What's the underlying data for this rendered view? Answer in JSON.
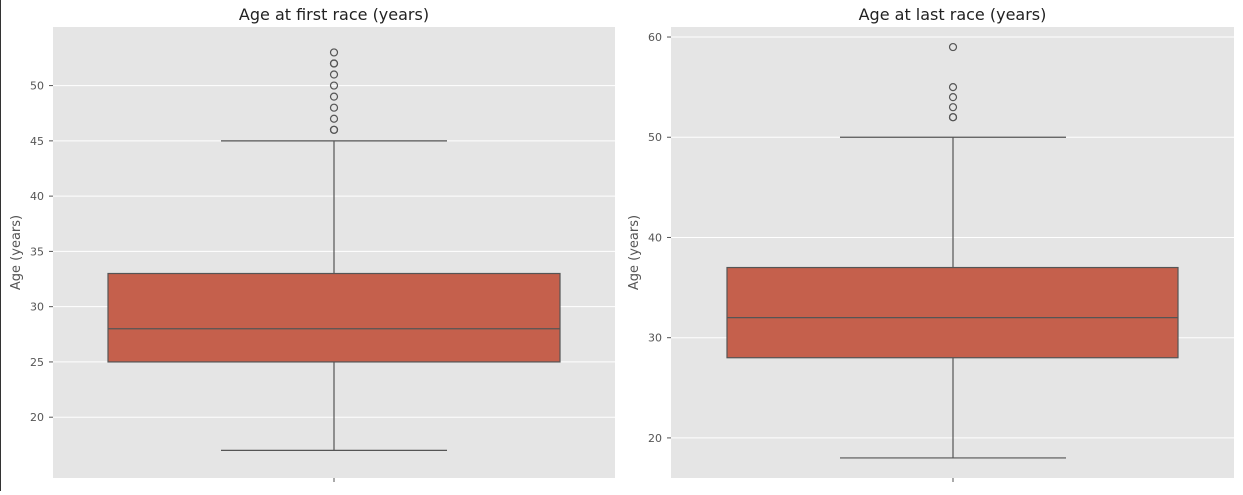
{
  "chart_data": [
    {
      "type": "box",
      "title": "Age at first race (years)",
      "xlabel": "",
      "ylabel": "Age (years)",
      "ylim": [
        14.5,
        55.3
      ],
      "yticks": [
        20,
        25,
        30,
        35,
        40,
        45,
        50
      ],
      "grid": true,
      "box": {
        "whisker_low": 17,
        "q1": 25,
        "median": 28,
        "q3": 33,
        "whisker_high": 45,
        "outliers": [
          46,
          46,
          47,
          48,
          49,
          50,
          51,
          52,
          52,
          53
        ]
      },
      "color": "#c5604c"
    },
    {
      "type": "box",
      "title": "Age at last race (years)",
      "xlabel": "",
      "ylabel": "Age (years)",
      "ylim": [
        16,
        61
      ],
      "yticks": [
        20,
        30,
        40,
        50,
        60
      ],
      "grid": true,
      "box": {
        "whisker_low": 18,
        "q1": 28,
        "median": 32,
        "q3": 37,
        "whisker_high": 50,
        "outliers": [
          52,
          52,
          53,
          54,
          55,
          59
        ]
      },
      "color": "#c5604c"
    }
  ]
}
